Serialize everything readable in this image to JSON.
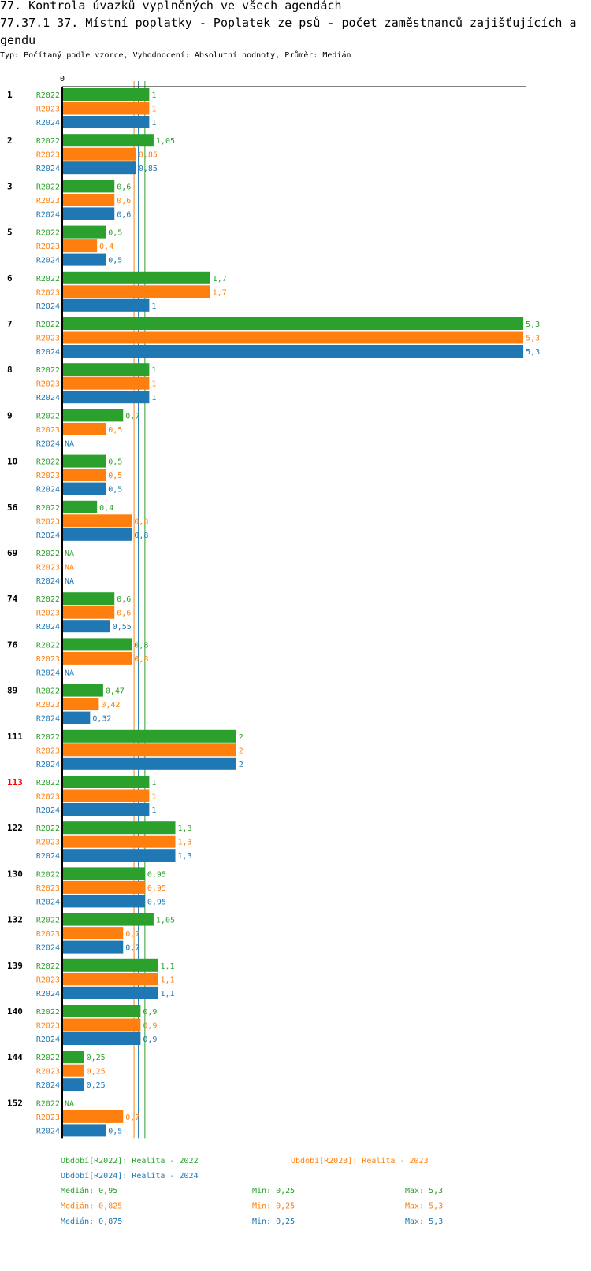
{
  "heading": {
    "line1": "77. Kontrola úvazků vyplněných ve všech agendách",
    "line2": "77.37.1 37. Místní poplatky - Poplatek ze psů - počet zaměstnanců zajišťujících a",
    "line3": "gendu",
    "subtitle": "Typ: Počítaný podle vzorce, Vyhodnocení: Absolutní hodnoty, Průměr: Medián"
  },
  "colors": {
    "R2022": "#2ca02c",
    "R2023": "#ff7f0e",
    "R2024": "#1f77b4",
    "highlight": "#ff0000",
    "text": "#000000"
  },
  "chart_data": {
    "type": "bar",
    "orientation": "horizontal",
    "x_axis_tick": "0",
    "xlim": [
      0,
      5.3
    ],
    "na_label": "NA",
    "series_names": [
      "R2022",
      "R2023",
      "R2024"
    ],
    "highlighted_category": "113",
    "groups": [
      {
        "label": "1",
        "values": [
          1,
          1,
          1
        ],
        "texts": [
          "1",
          "1",
          "1"
        ]
      },
      {
        "label": "2",
        "values": [
          1.05,
          0.85,
          0.85
        ],
        "texts": [
          "1,05",
          "0,85",
          "0,85"
        ]
      },
      {
        "label": "3",
        "values": [
          0.6,
          0.6,
          0.6
        ],
        "texts": [
          "0,6",
          "0,6",
          "0,6"
        ]
      },
      {
        "label": "5",
        "values": [
          0.5,
          0.4,
          0.5
        ],
        "texts": [
          "0,5",
          "0,4",
          "0,5"
        ]
      },
      {
        "label": "6",
        "values": [
          1.7,
          1.7,
          1
        ],
        "texts": [
          "1,7",
          "1,7",
          "1"
        ]
      },
      {
        "label": "7",
        "values": [
          5.3,
          5.3,
          5.3
        ],
        "texts": [
          "5,3",
          "5,3",
          "5,3"
        ]
      },
      {
        "label": "8",
        "values": [
          1,
          1,
          1
        ],
        "texts": [
          "1",
          "1",
          "1"
        ]
      },
      {
        "label": "9",
        "values": [
          0.7,
          0.5,
          null
        ],
        "texts": [
          "0,7",
          "0,5",
          "NA"
        ]
      },
      {
        "label": "10",
        "values": [
          0.5,
          0.5,
          0.5
        ],
        "texts": [
          "0,5",
          "0,5",
          "0,5"
        ]
      },
      {
        "label": "56",
        "values": [
          0.4,
          0.8,
          0.8
        ],
        "texts": [
          "0,4",
          "0,8",
          "0,8"
        ]
      },
      {
        "label": "69",
        "values": [
          null,
          null,
          null
        ],
        "texts": [
          "NA",
          "NA",
          "NA"
        ]
      },
      {
        "label": "74",
        "values": [
          0.6,
          0.6,
          0.55
        ],
        "texts": [
          "0,6",
          "0,6",
          "0,55"
        ]
      },
      {
        "label": "76",
        "values": [
          0.8,
          0.8,
          null
        ],
        "texts": [
          "0,8",
          "0,8",
          "NA"
        ]
      },
      {
        "label": "89",
        "values": [
          0.47,
          0.42,
          0.32
        ],
        "texts": [
          "0,47",
          "0,42",
          "0,32"
        ]
      },
      {
        "label": "111",
        "values": [
          2,
          2,
          2
        ],
        "texts": [
          "2",
          "2",
          "2"
        ]
      },
      {
        "label": "113",
        "values": [
          1,
          1,
          1
        ],
        "texts": [
          "1",
          "1",
          "1"
        ]
      },
      {
        "label": "122",
        "values": [
          1.3,
          1.3,
          1.3
        ],
        "texts": [
          "1,3",
          "1,3",
          "1,3"
        ]
      },
      {
        "label": "130",
        "values": [
          0.95,
          0.95,
          0.95
        ],
        "texts": [
          "0,95",
          "0,95",
          "0,95"
        ]
      },
      {
        "label": "132",
        "values": [
          1.05,
          0.7,
          0.7
        ],
        "texts": [
          "1,05",
          "0,7",
          "0,7"
        ]
      },
      {
        "label": "139",
        "values": [
          1.1,
          1.1,
          1.1
        ],
        "texts": [
          "1,1",
          "1,1",
          "1,1"
        ]
      },
      {
        "label": "140",
        "values": [
          0.9,
          0.9,
          0.9
        ],
        "texts": [
          "0,9",
          "0,9",
          "0,9"
        ]
      },
      {
        "label": "144",
        "values": [
          0.25,
          0.25,
          0.25
        ],
        "texts": [
          "0,25",
          "0,25",
          "0,25"
        ]
      },
      {
        "label": "152",
        "values": [
          null,
          0.7,
          0.5
        ],
        "texts": [
          "NA",
          "0,7",
          "0,5"
        ]
      }
    ],
    "median_lines": [
      {
        "series": "R2022",
        "value": 0.95
      },
      {
        "series": "R2023",
        "value": 0.825
      },
      {
        "series": "R2024",
        "value": 0.875
      }
    ]
  },
  "legend": {
    "entries": [
      {
        "series": "R2022",
        "text": "Období[R2022]: Realita - 2022"
      },
      {
        "series": "R2023",
        "text": "Období[R2023]: Realita - 2023"
      },
      {
        "series": "R2024",
        "text": "Období[R2024]: Realita - 2024"
      }
    ],
    "stats": [
      {
        "series": "R2022",
        "median": "Medián: 0,95",
        "min": "Min: 0,25",
        "max": "Max: 5,3"
      },
      {
        "series": "R2023",
        "median": "Medián: 0,825",
        "min": "Min: 0,25",
        "max": "Max: 5,3"
      },
      {
        "series": "R2024",
        "median": "Medián: 0,875",
        "min": "Min: 0,25",
        "max": "Max: 5,3"
      }
    ]
  }
}
